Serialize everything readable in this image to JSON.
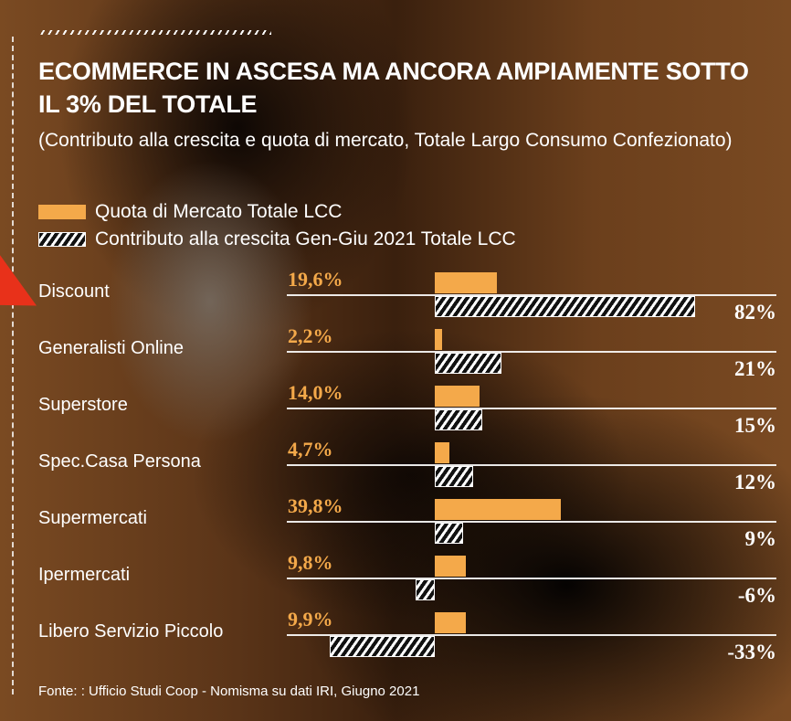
{
  "chart_data": {
    "type": "bar",
    "title": "ECOMMERCE IN ASCESA MA ANCORA AMPIAMENTE SOTTO IL 3% DEL TOTALE",
    "subtitle": "(Contributo alla crescita e quota di mercato, Totale Largo Consumo Confezionato)",
    "legend": [
      "Quota di Mercato Totale LCC",
      "Contributo alla crescita Gen-Giu 2021 Totale LCC"
    ],
    "categories": [
      "Discount",
      "Generalisti Online",
      "Superstore",
      "Spec.Casa Persona",
      "Supermercati",
      "Ipermercati",
      "Libero Servizio Piccolo"
    ],
    "series": [
      {
        "name": "Quota di Mercato Totale LCC",
        "values": [
          19.6,
          2.2,
          14.0,
          4.7,
          39.8,
          9.8,
          9.9
        ],
        "labels": [
          "19,6%",
          "2,2%",
          "14,0%",
          "4,7%",
          "39,8%",
          "9,8%",
          "9,9%"
        ],
        "color": "#f4a94a"
      },
      {
        "name": "Contributo alla crescita Gen-Giu 2021 Totale LCC",
        "values": [
          82,
          21,
          15,
          12,
          9,
          -6,
          -33
        ],
        "labels": [
          "82%",
          "21%",
          "15%",
          "12%",
          "9%",
          "-6%",
          "-33%"
        ],
        "pattern": "hatched"
      }
    ],
    "source": "Fonte: : Ufficio Studi Coop - Nomisma su dati IRI, Giugno 2021"
  }
}
